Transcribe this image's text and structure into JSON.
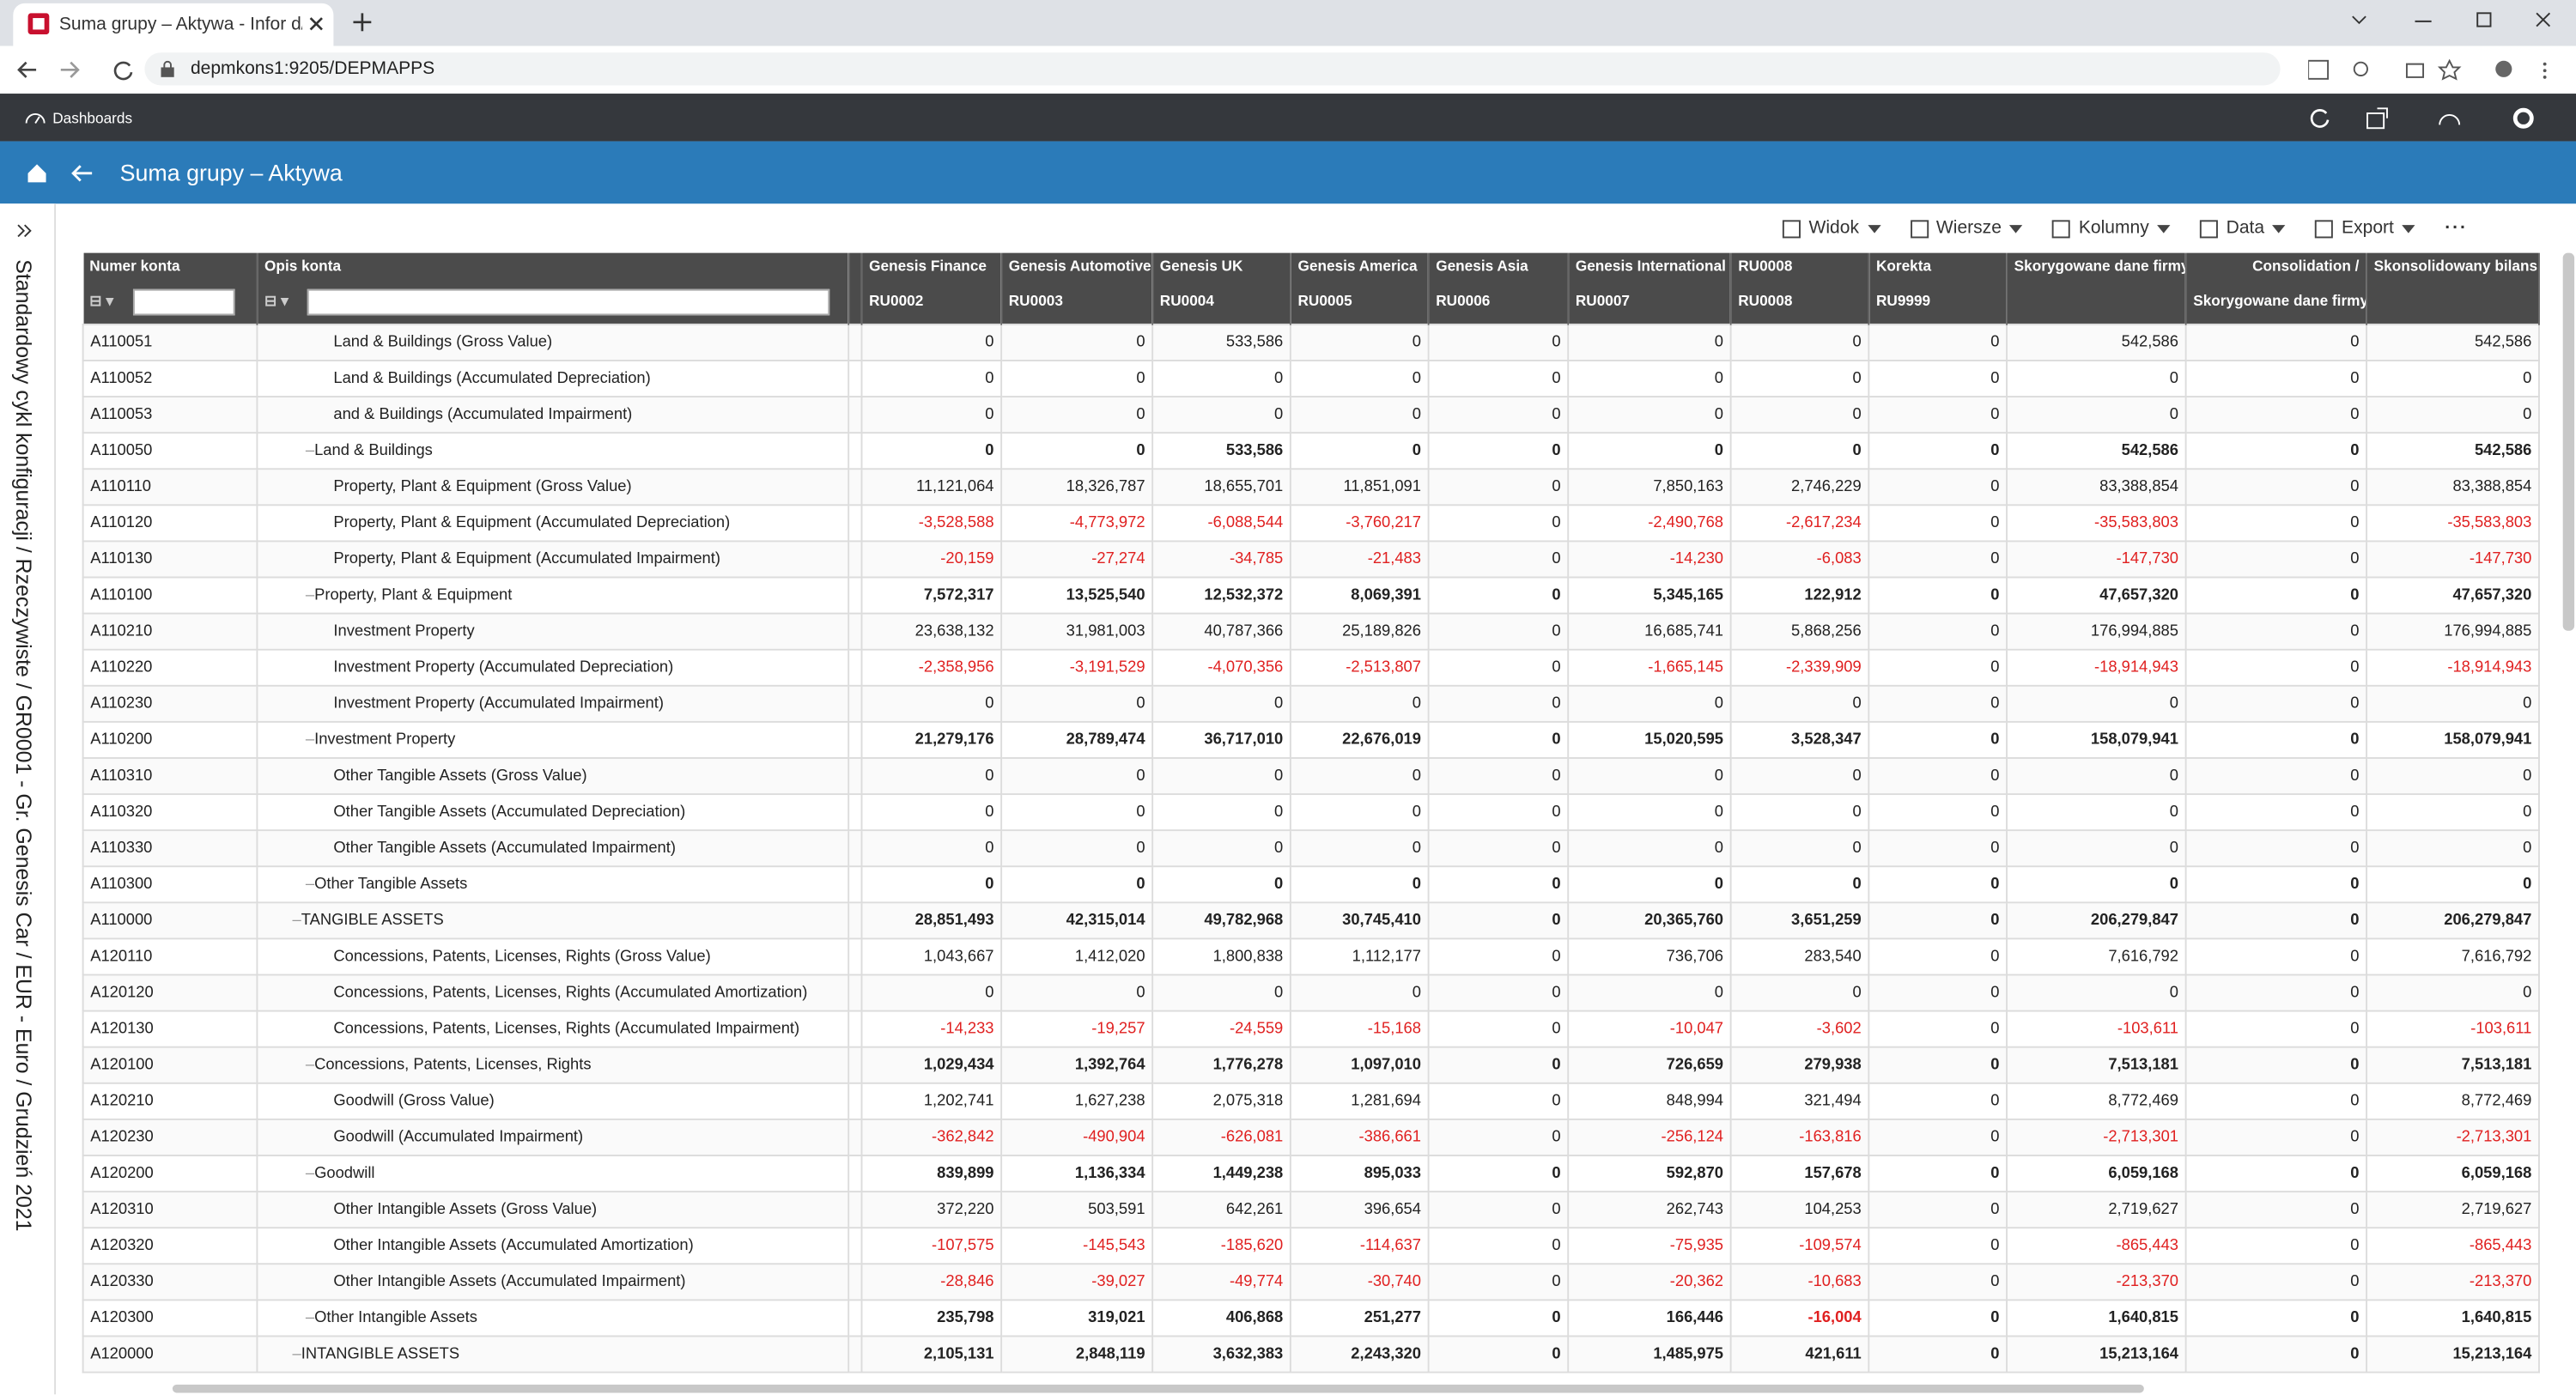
{
  "browser": {
    "tab_title": "Suma grupy – Aktywa - Infor d/E",
    "url": "depmkons1:9205/DEPMAPPS"
  },
  "app": {
    "nav": "Dashboards",
    "page_title": "Suma grupy – Aktywa",
    "toolbar": [
      "Widok",
      "Wiersze",
      "Kolumny",
      "Data",
      "Export"
    ],
    "context": "Standardowy cykl konfiguracji / Rzeczywiste / GR0001 - Gr. Genesis Car / EUR - Euro / Grudzień 2021"
  },
  "table": {
    "columns": [
      {
        "name": "Numer konta"
      },
      {
        "name": "Opis konta"
      },
      {
        "name": "Genesis Finance",
        "sub": "RU0002"
      },
      {
        "name": "Genesis Automotive",
        "sub": "RU0003"
      },
      {
        "name": "Genesis UK",
        "sub": "RU0004"
      },
      {
        "name": "Genesis America",
        "sub": "RU0005"
      },
      {
        "name": "Genesis Asia",
        "sub": "RU0006"
      },
      {
        "name": "Genesis International",
        "sub": "RU0007"
      },
      {
        "name": "RU0008",
        "sub": "RU0008"
      },
      {
        "name": "Korekta",
        "sub": "RU9999"
      },
      {
        "name": "Skorygowane dane firmy"
      },
      {
        "name": "Consolidation /",
        "sub": "Skorygowane dane firmy"
      },
      {
        "name": "Skonsolidowany bilans"
      }
    ],
    "rows": [
      {
        "account": "A110051",
        "description": "Land & Buildings (Gross Value)",
        "level": 2,
        "values": [
          "0",
          "0",
          "533,586",
          "0",
          "0",
          "0",
          "0",
          "0",
          "542,586",
          "0",
          "542,586"
        ]
      },
      {
        "account": "A110052",
        "description": "Land & Buildings (Accumulated Depreciation)",
        "level": 2,
        "values": [
          "0",
          "0",
          "0",
          "0",
          "0",
          "0",
          "0",
          "0",
          "0",
          "0",
          "0"
        ]
      },
      {
        "account": "A110053",
        "description": "and & Buildings (Accumulated Impairment)",
        "level": 2,
        "values": [
          "0",
          "0",
          "0",
          "0",
          "0",
          "0",
          "0",
          "0",
          "0",
          "0",
          "0"
        ]
      },
      {
        "account": "A110050",
        "description": "Land & Buildings",
        "level": 1,
        "values": [
          "0",
          "0",
          "533,586",
          "0",
          "0",
          "0",
          "0",
          "0",
          "542,586",
          "0",
          "542,586"
        ]
      },
      {
        "account": "A110110",
        "description": "Property, Plant & Equipment (Gross Value)",
        "level": 2,
        "values": [
          "11,121,064",
          "18,326,787",
          "18,655,701",
          "11,851,091",
          "0",
          "7,850,163",
          "2,746,229",
          "0",
          "83,388,854",
          "0",
          "83,388,854"
        ]
      },
      {
        "account": "A110120",
        "description": "Property, Plant & Equipment (Accumulated Depreciation)",
        "level": 2,
        "values": [
          "-3,528,588",
          "-4,773,972",
          "-6,088,544",
          "-3,760,217",
          "0",
          "-2,490,768",
          "-2,617,234",
          "0",
          "-35,583,803",
          "0",
          "-35,583,803"
        ]
      },
      {
        "account": "A110130",
        "description": "Property, Plant & Equipment (Accumulated Impairment)",
        "level": 2,
        "values": [
          "-20,159",
          "-27,274",
          "-34,785",
          "-21,483",
          "0",
          "-14,230",
          "-6,083",
          "0",
          "-147,730",
          "0",
          "-147,730"
        ]
      },
      {
        "account": "A110100",
        "description": "Property, Plant & Equipment",
        "level": 1,
        "values": [
          "7,572,317",
          "13,525,540",
          "12,532,372",
          "8,069,391",
          "0",
          "5,345,165",
          "122,912",
          "0",
          "47,657,320",
          "0",
          "47,657,320"
        ]
      },
      {
        "account": "A110210",
        "description": "Investment Property",
        "level": 2,
        "values": [
          "23,638,132",
          "31,981,003",
          "40,787,366",
          "25,189,826",
          "0",
          "16,685,741",
          "5,868,256",
          "0",
          "176,994,885",
          "0",
          "176,994,885"
        ]
      },
      {
        "account": "A110220",
        "description": "Investment Property (Accumulated Depreciation)",
        "level": 2,
        "values": [
          "-2,358,956",
          "-3,191,529",
          "-4,070,356",
          "-2,513,807",
          "0",
          "-1,665,145",
          "-2,339,909",
          "0",
          "-18,914,943",
          "0",
          "-18,914,943"
        ]
      },
      {
        "account": "A110230",
        "description": "Investment Property (Accumulated Impairment)",
        "level": 2,
        "values": [
          "0",
          "0",
          "0",
          "0",
          "0",
          "0",
          "0",
          "0",
          "0",
          "0",
          "0"
        ]
      },
      {
        "account": "A110200",
        "description": "Investment Property",
        "level": 1,
        "values": [
          "21,279,176",
          "28,789,474",
          "36,717,010",
          "22,676,019",
          "0",
          "15,020,595",
          "3,528,347",
          "0",
          "158,079,941",
          "0",
          "158,079,941"
        ]
      },
      {
        "account": "A110310",
        "description": "Other Tangible Assets (Gross Value)",
        "level": 2,
        "values": [
          "0",
          "0",
          "0",
          "0",
          "0",
          "0",
          "0",
          "0",
          "0",
          "0",
          "0"
        ]
      },
      {
        "account": "A110320",
        "description": "Other Tangible Assets (Accumulated Depreciation)",
        "level": 2,
        "values": [
          "0",
          "0",
          "0",
          "0",
          "0",
          "0",
          "0",
          "0",
          "0",
          "0",
          "0"
        ]
      },
      {
        "account": "A110330",
        "description": "Other Tangible Assets (Accumulated Impairment)",
        "level": 2,
        "values": [
          "0",
          "0",
          "0",
          "0",
          "0",
          "0",
          "0",
          "0",
          "0",
          "0",
          "0"
        ]
      },
      {
        "account": "A110300",
        "description": "Other Tangible Assets",
        "level": 1,
        "values": [
          "0",
          "0",
          "0",
          "0",
          "0",
          "0",
          "0",
          "0",
          "0",
          "0",
          "0"
        ]
      },
      {
        "account": "A110000",
        "description": "TANGIBLE ASSETS",
        "level": 0,
        "values": [
          "28,851,493",
          "42,315,014",
          "49,782,968",
          "30,745,410",
          "0",
          "20,365,760",
          "3,651,259",
          "0",
          "206,279,847",
          "0",
          "206,279,847"
        ]
      },
      {
        "account": "A120110",
        "description": "Concessions, Patents, Licenses, Rights (Gross Value)",
        "level": 2,
        "values": [
          "1,043,667",
          "1,412,020",
          "1,800,838",
          "1,112,177",
          "0",
          "736,706",
          "283,540",
          "0",
          "7,616,792",
          "0",
          "7,616,792"
        ]
      },
      {
        "account": "A120120",
        "description": "Concessions, Patents, Licenses, Rights (Accumulated Amortization)",
        "level": 2,
        "values": [
          "0",
          "0",
          "0",
          "0",
          "0",
          "0",
          "0",
          "0",
          "0",
          "0",
          "0"
        ]
      },
      {
        "account": "A120130",
        "description": "Concessions, Patents, Licenses, Rights (Accumulated Impairment)",
        "level": 2,
        "values": [
          "-14,233",
          "-19,257",
          "-24,559",
          "-15,168",
          "0",
          "-10,047",
          "-3,602",
          "0",
          "-103,611",
          "0",
          "-103,611"
        ]
      },
      {
        "account": "A120100",
        "description": "Concessions, Patents, Licenses, Rights",
        "level": 1,
        "values": [
          "1,029,434",
          "1,392,764",
          "1,776,278",
          "1,097,010",
          "0",
          "726,659",
          "279,938",
          "0",
          "7,513,181",
          "0",
          "7,513,181"
        ]
      },
      {
        "account": "A120210",
        "description": "Goodwill (Gross Value)",
        "level": 2,
        "values": [
          "1,202,741",
          "1,627,238",
          "2,075,318",
          "1,281,694",
          "0",
          "848,994",
          "321,494",
          "0",
          "8,772,469",
          "0",
          "8,772,469"
        ]
      },
      {
        "account": "A120230",
        "description": "Goodwill (Accumulated Impairment)",
        "level": 2,
        "values": [
          "-362,842",
          "-490,904",
          "-626,081",
          "-386,661",
          "0",
          "-256,124",
          "-163,816",
          "0",
          "-2,713,301",
          "0",
          "-2,713,301"
        ]
      },
      {
        "account": "A120200",
        "description": "Goodwill",
        "level": 1,
        "values": [
          "839,899",
          "1,136,334",
          "1,449,238",
          "895,033",
          "0",
          "592,870",
          "157,678",
          "0",
          "6,059,168",
          "0",
          "6,059,168"
        ]
      },
      {
        "account": "A120310",
        "description": "Other Intangible Assets (Gross Value)",
        "level": 2,
        "values": [
          "372,220",
          "503,591",
          "642,261",
          "396,654",
          "0",
          "262,743",
          "104,253",
          "0",
          "2,719,627",
          "0",
          "2,719,627"
        ]
      },
      {
        "account": "A120320",
        "description": "Other Intangible Assets (Accumulated Amortization)",
        "level": 2,
        "values": [
          "-107,575",
          "-145,543",
          "-185,620",
          "-114,637",
          "0",
          "-75,935",
          "-109,574",
          "0",
          "-865,443",
          "0",
          "-865,443"
        ]
      },
      {
        "account": "A120330",
        "description": "Other Intangible Assets (Accumulated Impairment)",
        "level": 2,
        "values": [
          "-28,846",
          "-39,027",
          "-49,774",
          "-30,740",
          "0",
          "-20,362",
          "-10,683",
          "0",
          "-213,370",
          "0",
          "-213,370"
        ]
      },
      {
        "account": "A120300",
        "description": "Other Intangible Assets",
        "level": 1,
        "values": [
          "235,798",
          "319,021",
          "406,868",
          "251,277",
          "0",
          "166,446",
          "-16,004",
          "0",
          "1,640,815",
          "0",
          "1,640,815"
        ]
      },
      {
        "account": "A120000",
        "description": "INTANGIBLE ASSETS",
        "level": 0,
        "values": [
          "2,105,131",
          "2,848,119",
          "3,632,383",
          "2,243,320",
          "0",
          "1,485,975",
          "421,611",
          "0",
          "15,213,164",
          "0",
          "15,213,164"
        ]
      }
    ]
  }
}
